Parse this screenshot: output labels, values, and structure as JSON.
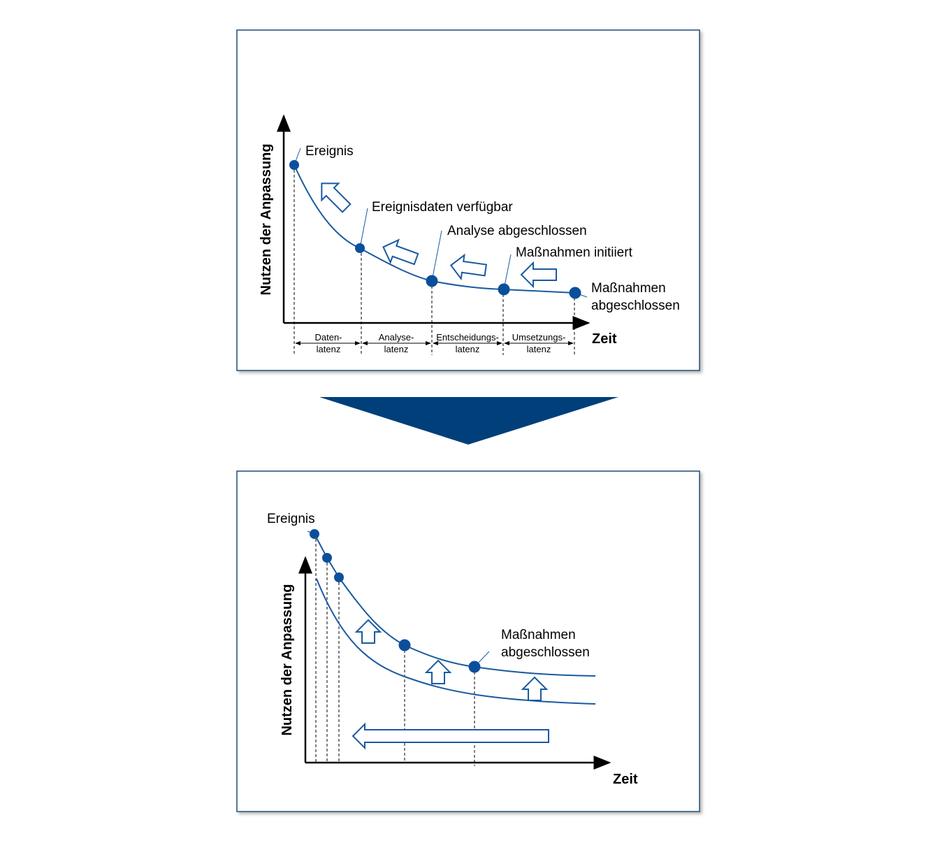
{
  "top_panel": {
    "y_axis_label": "Nutzen der Anpassung",
    "x_axis_label": "Zeit",
    "milestones": [
      {
        "lines": [
          "Ereignis"
        ]
      },
      {
        "lines": [
          "Ereignisdaten verfügbar"
        ]
      },
      {
        "lines": [
          "Analyse abgeschlossen"
        ]
      },
      {
        "lines": [
          "Maßnahmen initiiert"
        ]
      },
      {
        "lines": [
          "Maßnahmen",
          "abgeschlossen"
        ]
      }
    ],
    "latencies": [
      {
        "lines": [
          "Daten-",
          "latenz"
        ]
      },
      {
        "lines": [
          "Analyse-",
          "latenz"
        ]
      },
      {
        "lines": [
          "Entscheidungs-",
          "latenz"
        ]
      },
      {
        "lines": [
          "Umsetzungs-",
          "latenz"
        ]
      }
    ]
  },
  "bottom_panel": {
    "y_axis_label": "Nutzen der Anpassung",
    "x_axis_label": "Zeit",
    "milestones": [
      {
        "lines": [
          "Ereignis"
        ]
      },
      {
        "lines": [
          "Maßnahmen",
          "abgeschlossen"
        ]
      }
    ]
  }
}
